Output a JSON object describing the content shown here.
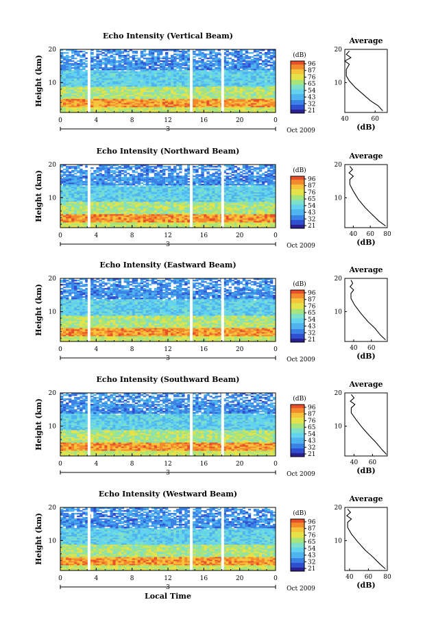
{
  "colors": {
    "scale": [
      "#2a1f8f",
      "#2f4fd0",
      "#3b82e6",
      "#4fb3ee",
      "#63d3ee",
      "#7fe0c8",
      "#a7e47c",
      "#e6e24a",
      "#f5c43c",
      "#f38a2e",
      "#e8502a"
    ],
    "axis": "#000000",
    "profile_line": "#000000"
  },
  "chart_data": [
    {
      "type": "heatmap",
      "title": "Echo Intensity (Vertical Beam)",
      "ylabel": "Height (km)",
      "xticks": [
        "0",
        "4",
        "8",
        "12",
        "16",
        "20",
        "0"
      ],
      "yticks": [
        "20",
        "10"
      ],
      "date_marker": "3",
      "date_label": "Oct 2009",
      "colorbar_unit": "(dB)",
      "colorbar_ticks": [
        "96",
        "87",
        "76",
        "65",
        "54",
        "43",
        "32",
        "21"
      ],
      "xlim": [
        0,
        24
      ],
      "ylim": [
        1,
        20
      ],
      "gaps_hours": [
        3.2,
        14.6,
        18.1
      ],
      "profile": {
        "title": "Average",
        "xlabel": "(dB)",
        "xticks": [
          "40",
          "60"
        ],
        "yticks": [
          "20",
          "10"
        ],
        "xlim": [
          40,
          68
        ],
        "points": [
          [
            65,
            1.5
          ],
          [
            62,
            3
          ],
          [
            57,
            4.5
          ],
          [
            52,
            6.5
          ],
          [
            47,
            8.5
          ],
          [
            43,
            10.5
          ],
          [
            41,
            12
          ],
          [
            41,
            14
          ],
          [
            43,
            15.5
          ],
          [
            40,
            16.5
          ],
          [
            44,
            17.5
          ],
          [
            41,
            18.5
          ],
          [
            43,
            19.5
          ]
        ]
      }
    },
    {
      "type": "heatmap",
      "title": "Echo Intensity (Northward Beam)",
      "ylabel": "Height (km)",
      "xticks": [
        "0",
        "4",
        "8",
        "12",
        "16",
        "20",
        "0"
      ],
      "yticks": [
        "20",
        "10"
      ],
      "date_marker": "3",
      "date_label": "Oct 2009",
      "colorbar_unit": "(dB)",
      "colorbar_ticks": [
        "96",
        "87",
        "76",
        "65",
        "54",
        "43",
        "32",
        "21"
      ],
      "xlim": [
        0,
        24
      ],
      "ylim": [
        1,
        20
      ],
      "gaps_hours": [
        3.2,
        14.6,
        18.1
      ],
      "profile": {
        "title": "Average",
        "xlabel": "(dB)",
        "xticks": [
          "40",
          "60",
          "80"
        ],
        "yticks": [
          "20",
          "10"
        ],
        "xlim": [
          30,
          80
        ],
        "points": [
          [
            78,
            1.5
          ],
          [
            70,
            3
          ],
          [
            62,
            5
          ],
          [
            54,
            7
          ],
          [
            46,
            9.5
          ],
          [
            40,
            12
          ],
          [
            36,
            14
          ],
          [
            36,
            15.5
          ],
          [
            40,
            16.5
          ],
          [
            35,
            17.5
          ],
          [
            39,
            18.5
          ],
          [
            36,
            19.5
          ]
        ]
      }
    },
    {
      "type": "heatmap",
      "title": "Echo Intensity (Eastward Beam)",
      "ylabel": "Height (km)",
      "xticks": [
        "0",
        "4",
        "8",
        "12",
        "16",
        "20",
        "0"
      ],
      "yticks": [
        "20",
        "10"
      ],
      "date_marker": "3",
      "date_label": "Oct 2009",
      "colorbar_unit": "(dB)",
      "colorbar_ticks": [
        "96",
        "87",
        "76",
        "65",
        "54",
        "43",
        "32",
        "21"
      ],
      "xlim": [
        0,
        24
      ],
      "ylim": [
        1,
        20
      ],
      "gaps_hours": [
        3.2,
        14.6,
        18.1
      ],
      "profile": {
        "title": "Average",
        "xlabel": "(dB)",
        "xticks": [
          "40",
          "60"
        ],
        "yticks": [
          "20",
          "10"
        ],
        "xlim": [
          30,
          78
        ],
        "points": [
          [
            76,
            1.5
          ],
          [
            70,
            3
          ],
          [
            64,
            5
          ],
          [
            56,
            7
          ],
          [
            48,
            9.5
          ],
          [
            41,
            12
          ],
          [
            37,
            14
          ],
          [
            37,
            15.5
          ],
          [
            40,
            16.5
          ],
          [
            36,
            17.5
          ],
          [
            39,
            18.5
          ],
          [
            37,
            19.5
          ]
        ]
      }
    },
    {
      "type": "heatmap",
      "title": "Echo Intensity (Southward Beam)",
      "ylabel": "Height (km)",
      "xticks": [
        "0",
        "4",
        "8",
        "12",
        "16",
        "20",
        "0"
      ],
      "yticks": [
        "20",
        "10"
      ],
      "date_marker": "3",
      "date_label": "Oct 2009",
      "colorbar_unit": "(dB)",
      "colorbar_ticks": [
        "96",
        "87",
        "76",
        "65",
        "54",
        "43",
        "32",
        "21"
      ],
      "xlim": [
        0,
        24
      ],
      "ylim": [
        1,
        20
      ],
      "gaps_hours": [
        3.2,
        14.6,
        18.1
      ],
      "profile": {
        "title": "Average",
        "xlabel": "(dB)",
        "xticks": [
          "40",
          "60"
        ],
        "yticks": [
          "20",
          "10"
        ],
        "xlim": [
          30,
          76
        ],
        "points": [
          [
            75,
            1.5
          ],
          [
            70,
            3
          ],
          [
            64,
            5
          ],
          [
            57,
            7
          ],
          [
            49,
            9.5
          ],
          [
            42,
            12
          ],
          [
            37,
            14
          ],
          [
            37,
            15.5
          ],
          [
            41,
            16.5
          ],
          [
            36,
            17.5
          ],
          [
            40,
            18.5
          ],
          [
            37,
            19.5
          ]
        ]
      }
    },
    {
      "type": "heatmap",
      "title": "Echo Intensity (Westward Beam)",
      "ylabel": "Height (km)",
      "xlabel": "Local Time",
      "xticks": [
        "0",
        "4",
        "8",
        "12",
        "16",
        "20",
        "0"
      ],
      "yticks": [
        "20",
        "10"
      ],
      "date_marker": "3",
      "date_label": "Oct 2009",
      "colorbar_unit": "(dB)",
      "colorbar_ticks": [
        "96",
        "87",
        "76",
        "65",
        "54",
        "43",
        "32",
        "21"
      ],
      "xlim": [
        0,
        24
      ],
      "ylim": [
        1,
        20
      ],
      "gaps_hours": [
        3.2,
        14.6,
        18.1
      ],
      "profile": {
        "title": "Average",
        "xlabel": "(dB)",
        "xticks": [
          "40",
          "60",
          "80"
        ],
        "yticks": [
          "20",
          "10"
        ],
        "xlim": [
          35,
          80
        ],
        "points": [
          [
            78,
            1.5
          ],
          [
            72,
            3
          ],
          [
            65,
            5
          ],
          [
            57,
            7
          ],
          [
            49,
            9.5
          ],
          [
            42,
            12
          ],
          [
            38,
            14
          ],
          [
            38,
            15.5
          ],
          [
            42,
            16.5
          ],
          [
            37,
            17.5
          ],
          [
            41,
            18.5
          ],
          [
            38,
            19.5
          ]
        ]
      }
    }
  ]
}
